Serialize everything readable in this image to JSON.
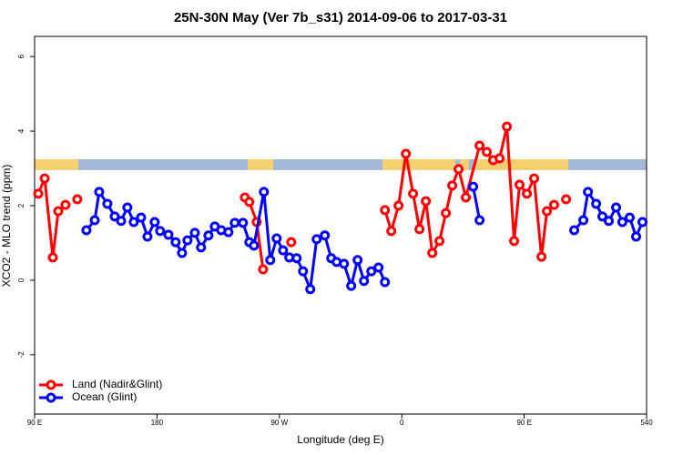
{
  "chart_data": {
    "type": "line",
    "title": "25N-30N May (Ver 7b_s31)   2014-09-06 to 2017-03-31",
    "x_label": "Longitude (deg E)",
    "y_label": "XCO2 - MLO trend (ppm)",
    "xlim": [
      90,
      540
    ],
    "ylim": [
      -3.59,
      6.54
    ],
    "xticks": [
      {
        "value": 90,
        "label": "90 E"
      },
      180,
      {
        "value": 270,
        "label": "90 W"
      },
      {
        "value": 360,
        "label": "0"
      },
      {
        "value": 450,
        "label": "90 E"
      },
      540
    ],
    "yticks": [
      -2,
      0,
      2,
      4,
      6
    ],
    "legend": "bottomleft",
    "series": [
      {
        "name": "Land (Nadir&Glint)",
        "color": "#ff0000",
        "x": [
          92.7,
          97.4,
          103.4,
          107.4,
          112.7,
          117,
          121.4,
          180,
          244.6,
          247.9,
          253.3,
          258.0,
          268,
          278.7,
          300,
          347.6,
          352.3,
          357.6,
          363.0,
          368.3,
          373.0,
          377.7,
          382.4,
          387.7,
          392.4,
          397.1,
          401.8,
          407.1,
          417.2,
          422.5,
          427.2,
          431.9,
          437.3,
          442.6,
          446.6,
          452.0,
          457.3,
          462.7,
          466.7,
          472.0,
          476,
          480.8
        ],
        "values": [
          2.32,
          2.73,
          0.61,
          1.85,
          2.02,
          null,
          2.17,
          null,
          2.22,
          2.1,
          1.56,
          0.29,
          null,
          1.02,
          null,
          1.88,
          1.32,
          2.0,
          3.39,
          2.32,
          1.37,
          2.12,
          0.73,
          1.05,
          1.8,
          2.54,
          2.98,
          2.22,
          3.61,
          3.44,
          3.22,
          3.27,
          4.12,
          1.05,
          2.56,
          2.32,
          2.73,
          0.63,
          1.85,
          2.02,
          null,
          2.17
        ]
      },
      {
        "name": "Ocean (Glint)",
        "color": "#0000ff",
        "x": [
          128.1,
          134.2,
          137.5,
          143.5,
          148.9,
          153.6,
          158.2,
          162.9,
          168.3,
          173.0,
          178.3,
          182.3,
          188.4,
          193.7,
          198.4,
          202.4,
          207.8,
          212.4,
          217.8,
          222.5,
          227.2,
          232.5,
          237.2,
          243.2,
          247.9,
          251.3,
          258.6,
          263.3,
          268.0,
          272.7,
          277.3,
          282.7,
          287.4,
          292.7,
          297.4,
          303.4,
          308.1,
          312.1,
          317.5,
          322.8,
          327.5,
          332.2,
          337.6,
          342.9,
          347.6,
          380,
          412.5,
          417.2,
          450,
          486.8,
          493.5,
          496.9,
          502.9,
          507.5,
          512.2,
          517.6,
          522.2,
          527.6,
          532.3,
          537.0
        ],
        "values": [
          1.34,
          1.61,
          2.37,
          2.05,
          1.71,
          1.59,
          1.95,
          1.56,
          1.68,
          1.17,
          1.56,
          1.32,
          1.22,
          1.02,
          0.73,
          1.07,
          1.27,
          0.88,
          1.2,
          1.44,
          1.34,
          1.29,
          1.54,
          1.54,
          1.02,
          0.93,
          2.37,
          0.54,
          1.12,
          0.8,
          0.61,
          0.59,
          0.24,
          -0.24,
          1.1,
          1.2,
          0.59,
          0.49,
          0.44,
          -0.15,
          0.54,
          -0.02,
          0.24,
          0.34,
          -0.05,
          null,
          2.51,
          1.61,
          null,
          1.34,
          1.61,
          2.37,
          2.05,
          1.71,
          1.59,
          1.95,
          1.56,
          1.68,
          1.17,
          1.56
        ]
      }
    ]
  }
}
